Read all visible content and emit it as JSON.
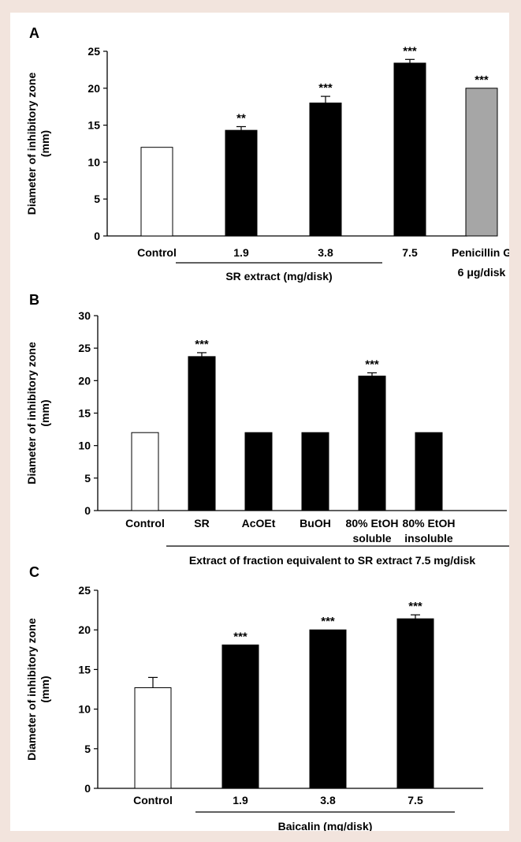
{
  "chart_data": [
    {
      "type": "bar",
      "panel_label": "A",
      "ylabel_lines": [
        "Diameter of inhibitory zone",
        "(mm)"
      ],
      "ylim": [
        0,
        25
      ],
      "yticks": [
        0,
        5,
        10,
        15,
        20,
        25
      ],
      "categories": [
        [
          "Control"
        ],
        [
          "1.9"
        ],
        [
          "3.8"
        ],
        [
          "7.5"
        ],
        [
          "Penicillin G",
          "6 μg/disk"
        ]
      ],
      "values": [
        12,
        14.3,
        18,
        23.4,
        20
      ],
      "errors": [
        0,
        0.5,
        0.9,
        0.5,
        0
      ],
      "bar_colors": [
        "#ffffff",
        "#000000",
        "#000000",
        "#000000",
        "#a6a6a6"
      ],
      "significance": [
        "",
        "**",
        "***",
        "***",
        "***"
      ],
      "group_label": "SR extract (mg/disk)",
      "group_span": [
        1,
        3
      ]
    },
    {
      "type": "bar",
      "panel_label": "B",
      "ylabel_lines": [
        "Diameter of inhibitory zone",
        "(mm)"
      ],
      "ylim": [
        0,
        30
      ],
      "yticks": [
        0,
        5,
        10,
        15,
        20,
        25,
        30
      ],
      "categories": [
        [
          "Control"
        ],
        [
          "SR"
        ],
        [
          "AcOEt"
        ],
        [
          "BuOH"
        ],
        [
          "80% EtOH",
          "soluble"
        ],
        [
          "80% EtOH",
          "insoluble"
        ]
      ],
      "values": [
        12,
        23.7,
        12,
        12,
        20.7,
        12
      ],
      "errors": [
        0,
        0.6,
        0,
        0,
        0.5,
        0
      ],
      "bar_colors": [
        "#ffffff",
        "#000000",
        "#000000",
        "#000000",
        "#000000",
        "#000000"
      ],
      "significance": [
        "",
        "***",
        "",
        "",
        "***",
        ""
      ],
      "group_label": "Extract of fraction equivalent to SR extract 7.5 mg/disk",
      "group_span": [
        1,
        5
      ]
    },
    {
      "type": "bar",
      "panel_label": "C",
      "ylabel_lines": [
        "Diameter of inhibitory zone",
        "(mm)"
      ],
      "ylim": [
        0,
        25
      ],
      "yticks": [
        0,
        5,
        10,
        15,
        20,
        25
      ],
      "categories": [
        [
          "Control"
        ],
        [
          "1.9"
        ],
        [
          "3.8"
        ],
        [
          "7.5"
        ]
      ],
      "values": [
        12.7,
        18.1,
        20,
        21.4
      ],
      "errors": [
        1.3,
        0,
        0,
        0.5
      ],
      "bar_colors": [
        "#ffffff",
        "#000000",
        "#000000",
        "#000000"
      ],
      "significance": [
        "",
        "***",
        "***",
        "***"
      ],
      "group_label": "Baicalin (mg/disk)",
      "group_span": [
        1,
        3
      ]
    }
  ]
}
